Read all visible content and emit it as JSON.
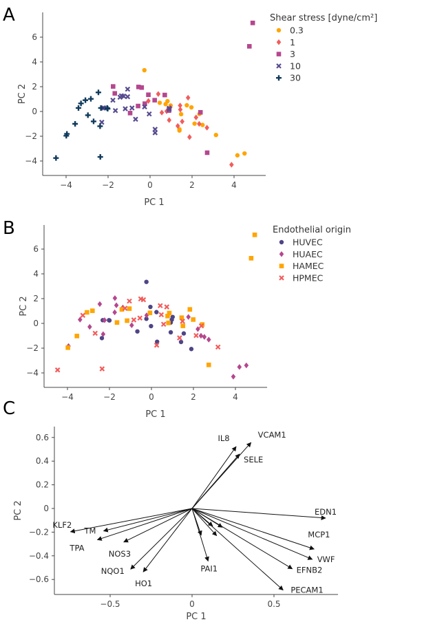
{
  "chart_data": [
    {
      "panel": "A",
      "type": "scatter",
      "xlabel": "PC 1",
      "ylabel": "PC 2",
      "xlim": [
        -5.1,
        5.5
      ],
      "ylim": [
        -5.0,
        7.8
      ],
      "xticks": [
        -4,
        -2,
        0,
        2,
        4
      ],
      "yticks": [
        -4,
        -2,
        0,
        2,
        4,
        6
      ],
      "xtick_labels": [
        "−4",
        "−2",
        "0",
        "2",
        "4"
      ],
      "ytick_labels": [
        "−4",
        "−2",
        "0",
        "2",
        "4",
        "6"
      ],
      "legend_title": "Shear stress [dyne/cm²]",
      "legend_placement": "right",
      "series": [
        {
          "name": "0.3",
          "marker": "circle",
          "color": "#FFA500",
          "points": [
            [
              -0.27,
              3.33
            ],
            [
              0.46,
              0.7
            ],
            [
              0.83,
              0.83
            ],
            [
              0.74,
              0.59
            ],
            [
              0.98,
              0.48
            ],
            [
              1.48,
              -0.22
            ],
            [
              1.4,
              -1.44
            ],
            [
              1.4,
              -1.54
            ],
            [
              1.75,
              0.5
            ],
            [
              1.97,
              0.33
            ],
            [
              2.12,
              -0.98
            ],
            [
              2.35,
              -0.2
            ],
            [
              2.5,
              -1.09
            ],
            [
              3.14,
              -1.9
            ],
            [
              4.16,
              -3.54
            ],
            [
              4.5,
              -3.39
            ]
          ]
        },
        {
          "name": "1",
          "marker": "diamond",
          "color": "#F25C5C",
          "points": [
            [
              -0.08,
              0.85
            ],
            [
              0.39,
              1.41
            ],
            [
              0.56,
              -0.09
            ],
            [
              0.79,
              0.02
            ],
            [
              0.91,
              -0.7
            ],
            [
              0.96,
              0.31
            ],
            [
              1.32,
              -1.17
            ],
            [
              1.43,
              0.48
            ],
            [
              1.44,
              0.15
            ],
            [
              1.53,
              -0.81
            ],
            [
              1.81,
              1.11
            ],
            [
              1.88,
              -2.07
            ],
            [
              2.19,
              -0.48
            ],
            [
              2.34,
              -1.0
            ],
            [
              2.71,
              -1.31
            ],
            [
              3.88,
              -4.3
            ]
          ]
        },
        {
          "name": "3",
          "marker": "square",
          "color": "#B5478E",
          "points": [
            [
              -1.76,
              2.02
            ],
            [
              -1.68,
              1.46
            ],
            [
              -0.95,
              -0.13
            ],
            [
              -0.57,
              0.44
            ],
            [
              -0.55,
              1.98
            ],
            [
              -0.4,
              1.93
            ],
            [
              -0.25,
              0.63
            ],
            [
              -0.08,
              1.35
            ],
            [
              0.22,
              0.91
            ],
            [
              0.7,
              1.33
            ],
            [
              0.9,
              0.07
            ],
            [
              2.4,
              -0.07
            ],
            [
              2.72,
              -3.33
            ],
            [
              4.73,
              5.26
            ],
            [
              4.89,
              7.15
            ]
          ]
        },
        {
          "name": "10",
          "marker": "x",
          "color": "#574B90",
          "points": [
            [
              -1.77,
              0.91
            ],
            [
              -1.65,
              0.07
            ],
            [
              -1.43,
              1.15
            ],
            [
              -1.36,
              1.26
            ],
            [
              -1.26,
              1.24
            ],
            [
              -1.18,
              0.22
            ],
            [
              -1.07,
              1.8
            ],
            [
              -1.07,
              1.19
            ],
            [
              -0.86,
              0.28
            ],
            [
              -0.69,
              -0.63
            ],
            [
              -0.26,
              0.37
            ],
            [
              -0.04,
              -0.2
            ],
            [
              0.24,
              -1.44
            ],
            [
              0.24,
              -1.72
            ],
            [
              -2.3,
              -0.87
            ],
            [
              -2.25,
              0.28
            ],
            [
              -2.2,
              0.28
            ],
            [
              0.91,
              0.17
            ],
            [
              0.91,
              0.26
            ]
          ]
        },
        {
          "name": "30",
          "marker": "plus",
          "color": "#0E3A5C",
          "points": [
            [
              -4.48,
              -3.76
            ],
            [
              -3.99,
              -1.96
            ],
            [
              -3.96,
              -1.81
            ],
            [
              -3.57,
              -1.0
            ],
            [
              -3.41,
              0.28
            ],
            [
              -3.29,
              0.65
            ],
            [
              -3.08,
              0.91
            ],
            [
              -2.96,
              -0.3
            ],
            [
              -2.82,
              1.02
            ],
            [
              -2.69,
              -0.8
            ],
            [
              -2.46,
              1.54
            ],
            [
              -2.38,
              -1.19
            ],
            [
              -2.37,
              -3.67
            ],
            [
              -2.34,
              0.28
            ],
            [
              -2.04,
              0.28
            ],
            [
              -2.02,
              0.22
            ]
          ]
        }
      ]
    },
    {
      "panel": "B",
      "type": "scatter",
      "xlabel": "PC 1",
      "ylabel": "PC 2",
      "xlim": [
        -5.1,
        5.5
      ],
      "ylim": [
        -5.0,
        7.8
      ],
      "xticks": [
        -4,
        -2,
        0,
        2,
        4
      ],
      "yticks": [
        -4,
        -2,
        0,
        2,
        4,
        6
      ],
      "xtick_labels": [
        "−4",
        "−2",
        "0",
        "2",
        "4"
      ],
      "ytick_labels": [
        "−4",
        "−2",
        "0",
        "2",
        "4",
        "6"
      ],
      "legend_title": "Endothelial origin",
      "legend_placement": "right",
      "series": [
        {
          "name": "HUVEC",
          "marker": "circle",
          "color": "#4E4585",
          "points": [
            [
              -0.24,
              3.35
            ],
            [
              -2.32,
              0.26
            ],
            [
              -2.02,
              0.26
            ],
            [
              -2.0,
              0.24
            ],
            [
              -2.36,
              -1.19
            ],
            [
              -0.67,
              -0.65
            ],
            [
              -0.24,
              0.37
            ],
            [
              -0.05,
              1.33
            ],
            [
              -0.02,
              -0.22
            ],
            [
              0.24,
              0.91
            ],
            [
              0.27,
              -1.48
            ],
            [
              0.92,
              -0.72
            ],
            [
              0.92,
              0.07
            ],
            [
              0.97,
              0.3
            ],
            [
              1.01,
              0.52
            ],
            [
              1.41,
              -1.5
            ],
            [
              1.54,
              -0.81
            ],
            [
              1.9,
              -2.07
            ]
          ]
        },
        {
          "name": "HUAEC",
          "marker": "diamond",
          "color": "#B5478E",
          "points": [
            [
              -3.95,
              -1.83
            ],
            [
              -3.4,
              0.3
            ],
            [
              -2.94,
              -0.28
            ],
            [
              -2.46,
              1.56
            ],
            [
              -2.3,
              -0.87
            ],
            [
              -2.23,
              0.26
            ],
            [
              -1.75,
              0.89
            ],
            [
              -1.74,
              2.04
            ],
            [
              -1.67,
              1.46
            ],
            [
              -1.36,
              1.28
            ],
            [
              -0.94,
              -0.15
            ],
            [
              -0.23,
              0.65
            ],
            [
              1.76,
              0.52
            ],
            [
              2.21,
              -0.46
            ],
            [
              2.36,
              -1.0
            ],
            [
              2.52,
              -1.09
            ],
            [
              2.73,
              -1.31
            ],
            [
              3.9,
              -4.3
            ],
            [
              4.19,
              -3.52
            ],
            [
              4.52,
              -3.39
            ]
          ]
        },
        {
          "name": "HAMEC",
          "marker": "square",
          "color": "#FFA500",
          "points": [
            [
              -3.98,
              -1.96
            ],
            [
              -3.55,
              -1.02
            ],
            [
              -3.07,
              0.89
            ],
            [
              -2.81,
              1.02
            ],
            [
              -1.64,
              0.07
            ],
            [
              -1.41,
              1.13
            ],
            [
              -1.16,
              0.22
            ],
            [
              -1.05,
              1.19
            ],
            [
              -0.07,
              0.85
            ],
            [
              0.77,
              0.59
            ],
            [
              0.81,
              0.04
            ],
            [
              0.85,
              0.83
            ],
            [
              1.44,
              0.46
            ],
            [
              1.5,
              -0.2
            ],
            [
              1.83,
              1.13
            ],
            [
              1.99,
              0.31
            ],
            [
              2.42,
              -0.09
            ],
            [
              2.73,
              -3.35
            ],
            [
              4.75,
              5.26
            ],
            [
              4.92,
              7.15
            ]
          ]
        },
        {
          "name": "HPMEC",
          "marker": "x",
          "color": "#F25C5C",
          "points": [
            [
              -4.47,
              -3.76
            ],
            [
              -3.27,
              0.65
            ],
            [
              -2.68,
              -0.8
            ],
            [
              -2.35,
              -3.67
            ],
            [
              -1.26,
              1.22
            ],
            [
              -1.05,
              1.8
            ],
            [
              -0.84,
              0.28
            ],
            [
              -0.55,
              0.43
            ],
            [
              -0.51,
              1.98
            ],
            [
              -0.38,
              1.91
            ],
            [
              0.25,
              -1.76
            ],
            [
              0.42,
              1.43
            ],
            [
              0.47,
              0.7
            ],
            [
              0.58,
              -0.07
            ],
            [
              0.73,
              1.33
            ],
            [
              1.34,
              -1.17
            ],
            [
              1.48,
              0.17
            ],
            [
              2.13,
              -0.98
            ],
            [
              2.38,
              -0.2
            ],
            [
              3.17,
              -1.91
            ]
          ]
        }
      ]
    },
    {
      "panel": "C",
      "type": "biplot-loadings",
      "xlabel": "PC 1",
      "ylabel": "PC 2",
      "xlim": [
        -0.84,
        0.9
      ],
      "ylim": [
        -0.72,
        0.7
      ],
      "xticks": [
        -0.5,
        0,
        0.5
      ],
      "yticks": [
        -0.6,
        -0.4,
        -0.2,
        0,
        0.2,
        0.4,
        0.6
      ],
      "xtick_labels": [
        "−0.5",
        "0",
        "0.5"
      ],
      "ytick_labels": [
        "−0.6",
        "−0.4",
        "−0.2",
        "0",
        "0.2",
        "0.4",
        "0.6"
      ],
      "vectors": [
        {
          "label": "IL8",
          "x": 0.269,
          "y": 0.523
        },
        {
          "label": "VCAM1",
          "x": 0.36,
          "y": 0.557
        },
        {
          "label": "SELE",
          "x": 0.29,
          "y": 0.46
        },
        {
          "label": "EDN1",
          "x": 0.815,
          "y": -0.081
        },
        {
          "label": "KLF2",
          "x": -0.742,
          "y": -0.197
        },
        {
          "label": "TM",
          "x": -0.54,
          "y": -0.19
        },
        {
          "label": "TPA",
          "x": -0.578,
          "y": -0.265
        },
        {
          "label": "NOS3",
          "x": -0.417,
          "y": -0.284
        },
        {
          "label": "NQO1",
          "x": -0.375,
          "y": -0.513
        },
        {
          "label": "HO1",
          "x": -0.298,
          "y": -0.536
        },
        {
          "label": "PAI1",
          "x": 0.098,
          "y": -0.445
        },
        {
          "label": "PECAM1",
          "x": 0.556,
          "y": -0.69
        },
        {
          "label": "EFNB2",
          "x": 0.612,
          "y": -0.51
        },
        {
          "label": "VWF",
          "x": 0.734,
          "y": -0.43
        },
        {
          "label": "MCP1",
          "x": 0.745,
          "y": -0.343
        },
        {
          "label": "",
          "x": 0.056,
          "y": -0.226
        },
        {
          "label": "",
          "x": 0.126,
          "y": -0.149
        },
        {
          "label": "",
          "x": 0.15,
          "y": -0.23
        },
        {
          "label": "",
          "x": 0.185,
          "y": -0.159
        }
      ]
    }
  ]
}
